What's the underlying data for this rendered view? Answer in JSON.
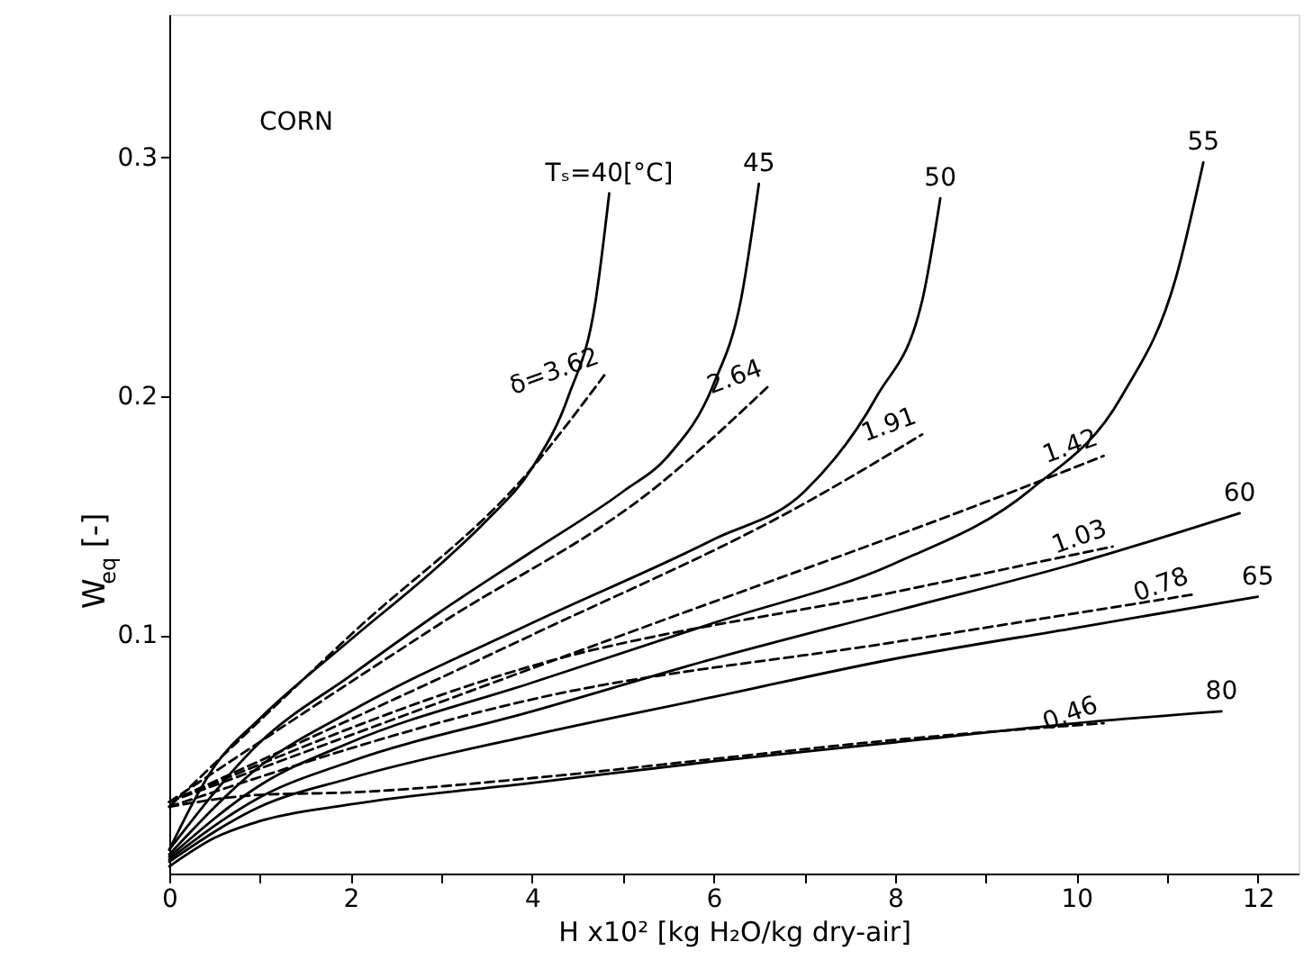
{
  "chart_data": {
    "type": "line",
    "xlabel": "H x10² [kg H₂O/kg dry-air]",
    "ylabel": "W$_{eq}$ [-]",
    "xlim": [
      0,
      12.45
    ],
    "ylim": [
      0,
      0.36
    ],
    "xticks": [
      0,
      {
        "value": 1,
        "label": null
      },
      2,
      {
        "value": 3,
        "label": null
      },
      4,
      {
        "value": 5,
        "label": null
      },
      6,
      {
        "value": 7,
        "label": null
      },
      8,
      {
        "value": 9,
        "label": null
      },
      10,
      {
        "value": 11,
        "label": null
      },
      12
    ],
    "yticks": [
      0.1,
      0.2,
      0.3
    ],
    "grid": false,
    "marker": "none",
    "annotations": [
      "CORN"
    ],
    "series": [
      {
        "name": "Tₛ=40[°C]",
        "color": "#000000",
        "line_style": "solid",
        "x": [
          0,
          0.5,
          1,
          2,
          3,
          3.5,
          4,
          4.4,
          4.7,
          4.85
        ],
        "values": [
          0.01,
          0.045,
          0.065,
          0.098,
          0.13,
          0.148,
          0.17,
          0.2,
          0.24,
          0.285
        ]
      },
      {
        "name": "45",
        "color": "#000000",
        "line_style": "solid",
        "x": [
          0,
          1,
          2,
          3,
          4,
          5,
          5.5,
          6,
          6.3,
          6.5
        ],
        "values": [
          0.01,
          0.055,
          0.083,
          0.11,
          0.135,
          0.16,
          0.175,
          0.205,
          0.24,
          0.289
        ]
      },
      {
        "name": "50",
        "color": "#000000",
        "line_style": "solid",
        "x": [
          0,
          1,
          2,
          4,
          6,
          7,
          7.8,
          8.3,
          8.5
        ],
        "values": [
          0.008,
          0.045,
          0.068,
          0.105,
          0.14,
          0.16,
          0.2,
          0.24,
          0.283
        ]
      },
      {
        "name": "55",
        "color": "#000000",
        "line_style": "solid",
        "x": [
          0,
          1,
          2,
          4,
          6,
          8,
          9.5,
          10.5,
          11.1,
          11.4
        ],
        "values": [
          0.007,
          0.037,
          0.055,
          0.08,
          0.105,
          0.13,
          0.161,
          0.2,
          0.25,
          0.298
        ]
      },
      {
        "name": "60",
        "color": "#000000",
        "line_style": "solid",
        "x": [
          0,
          1,
          2,
          4,
          6,
          8,
          10,
          11.8
        ],
        "values": [
          0.006,
          0.032,
          0.047,
          0.068,
          0.09,
          0.11,
          0.13,
          0.151
        ]
      },
      {
        "name": "65",
        "color": "#000000",
        "line_style": "solid",
        "x": [
          0,
          1,
          2,
          4,
          6,
          8,
          10,
          12
        ],
        "values": [
          0.005,
          0.028,
          0.04,
          0.058,
          0.074,
          0.09,
          0.103,
          0.116
        ]
      },
      {
        "name": "80",
        "color": "#000000",
        "line_style": "solid",
        "x": [
          0,
          0.5,
          1,
          2,
          4,
          6,
          8,
          10,
          11.6
        ],
        "values": [
          0.003,
          0.015,
          0.022,
          0.029,
          0.038,
          0.047,
          0.055,
          0.063,
          0.068
        ]
      },
      {
        "name": "δ=3.62",
        "color": "#000000",
        "line_style": "dashed",
        "x": [
          0,
          2,
          4,
          4.8
        ],
        "values": [
          0.028,
          0.1,
          0.17,
          0.209
        ]
      },
      {
        "name": "2.64",
        "color": "#000000",
        "line_style": "dashed",
        "x": [
          0,
          3,
          5.4,
          6.6
        ],
        "values": [
          0.03,
          0.105,
          0.163,
          0.204
        ]
      },
      {
        "name": "1.91",
        "color": "#000000",
        "line_style": "dashed",
        "x": [
          0,
          4,
          7,
          8.3
        ],
        "values": [
          0.03,
          0.1,
          0.155,
          0.184
        ]
      },
      {
        "name": "1.42",
        "color": "#000000",
        "line_style": "dashed",
        "x": [
          0,
          5,
          9.5,
          10.3
        ],
        "values": [
          0.03,
          0.1,
          0.163,
          0.175
        ]
      },
      {
        "name": "1.03",
        "color": "#000000",
        "line_style": "dashed",
        "x": [
          0,
          4,
          8,
          10.4
        ],
        "values": [
          0.03,
          0.087,
          0.118,
          0.137
        ]
      },
      {
        "name": "0.78",
        "color": "#000000",
        "line_style": "dashed",
        "x": [
          0,
          4,
          8,
          11.3
        ],
        "values": [
          0.028,
          0.073,
          0.097,
          0.117
        ]
      },
      {
        "name": "0.46",
        "color": "#000000",
        "line_style": "dashed",
        "x": [
          0,
          1,
          2,
          4,
          6,
          8,
          10.3
        ],
        "values": [
          0.028,
          0.033,
          0.034,
          0.04,
          0.048,
          0.056,
          0.063
        ]
      }
    ]
  }
}
